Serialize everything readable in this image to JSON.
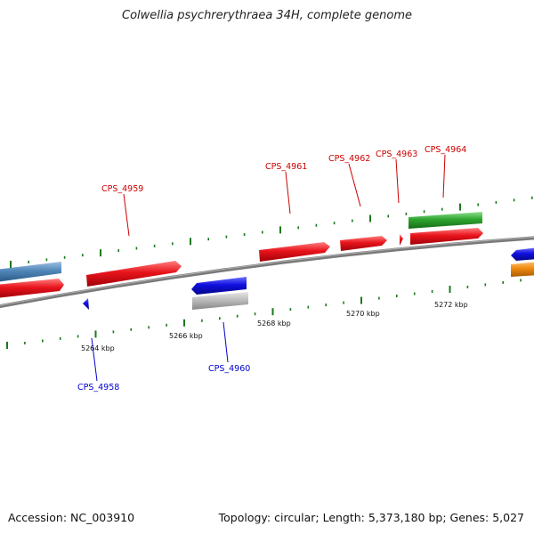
{
  "title": "Colwellia psychrerythraea 34H, complete genome",
  "footer": {
    "accession": "Accession: NC_003910",
    "summary": "Topology: circular; Length: 5,373,180 bp; Genes: 5,027"
  },
  "colors": {
    "forward_gene": "#e8141c",
    "reverse_gene": "#1010e0",
    "steel_blue_gene": "#4f86b8",
    "grey_gene": "#b4b4b4",
    "green_gene": "#2fa52f",
    "orange_gene": "#f08a10",
    "backbone": "#7a7a7a",
    "tick": "#1a7a1a",
    "forward_label": "#cc0000",
    "reverse_label": "#0000cc"
  },
  "scale_ticks": [
    "5264 kbp",
    "5266 kbp",
    "5268 kbp",
    "5270 kbp",
    "5272 kbp"
  ],
  "gene_labels": {
    "forward": [
      "CPS_4959",
      "CPS_4961",
      "CPS_4962",
      "CPS_4963",
      "CPS_4964"
    ],
    "reverse": [
      "CPS_4958",
      "CPS_4960"
    ]
  }
}
